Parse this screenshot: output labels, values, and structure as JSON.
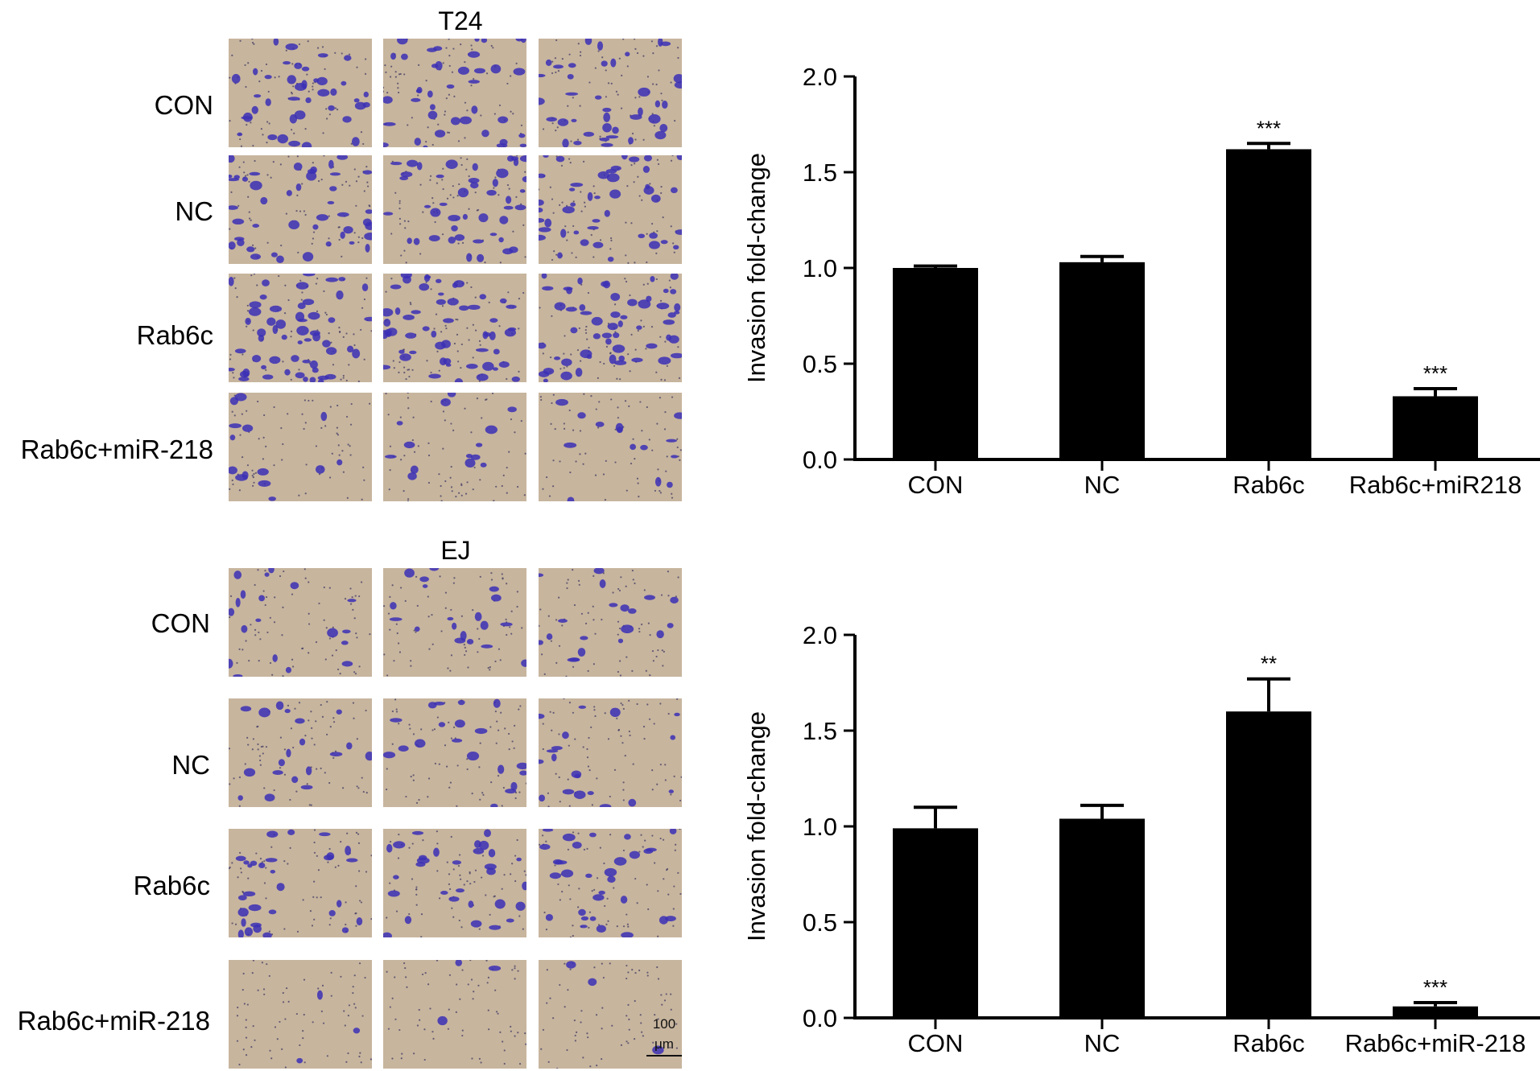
{
  "panels": [
    {
      "cell_line": "T24",
      "rows": [
        "CON",
        "NC",
        "Rab6c",
        "Rab6c+miR-218"
      ],
      "stain_density": [
        0.7,
        0.8,
        1.0,
        0.25
      ]
    },
    {
      "cell_line": "EJ",
      "rows": [
        "CON",
        "NC",
        "Rab6c",
        "Rab6c+miR-218"
      ],
      "stain_density": [
        0.35,
        0.35,
        0.55,
        0.05
      ]
    }
  ],
  "scale_bar": {
    "value": "100",
    "unit": "μm"
  },
  "colors": {
    "bar": "#000000",
    "stain": "#3b2fb5",
    "membrane": "#c7b59e"
  },
  "chart_data": [
    {
      "type": "bar",
      "categories": [
        "CON",
        "NC",
        "Rab6c",
        "Rab6c+miR218"
      ],
      "values": [
        1.0,
        1.03,
        1.62,
        0.33
      ],
      "errors": [
        0.01,
        0.03,
        0.03,
        0.04
      ],
      "significance": [
        "",
        "",
        "***",
        "***"
      ],
      "ylabel": "Invasion fold-change",
      "ylim": [
        0,
        2.0
      ],
      "yticks": [
        "0.0",
        "0.5",
        "1.0",
        "1.5",
        "2.0"
      ]
    },
    {
      "type": "bar",
      "categories": [
        "CON",
        "NC",
        "Rab6c",
        "Rab6c+miR-218"
      ],
      "values": [
        0.99,
        1.04,
        1.6,
        0.06
      ],
      "errors": [
        0.11,
        0.07,
        0.17,
        0.02
      ],
      "significance": [
        "",
        "",
        "**",
        "***"
      ],
      "ylabel": "Invasion fold-change",
      "ylim": [
        0,
        2.0
      ],
      "yticks": [
        "0.0",
        "0.5",
        "1.0",
        "1.5",
        "2.0"
      ]
    }
  ]
}
